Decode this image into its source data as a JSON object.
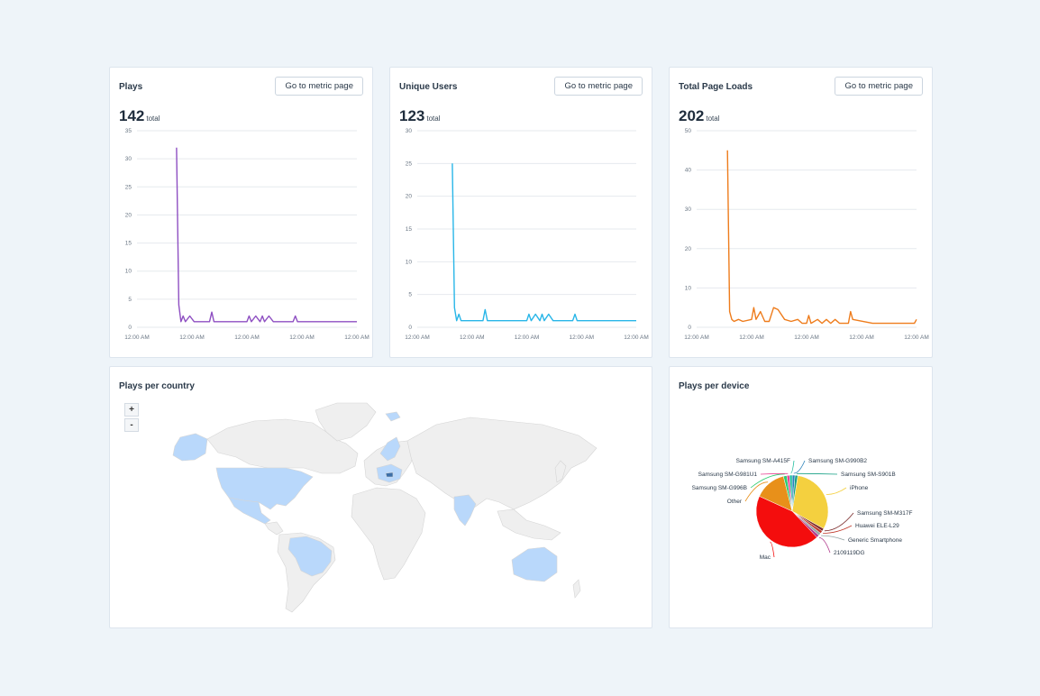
{
  "colors": {
    "plays": "#8e4fc2",
    "unique_users": "#29b6e8",
    "page_loads": "#ee7c1c",
    "map_highlight": "#b9d8fb",
    "map_land": "#efefef"
  },
  "common": {
    "metric_button_label": "Go to metric page",
    "total_suffix": "total"
  },
  "cards": {
    "plays": {
      "title": "Plays",
      "total": "142"
    },
    "unique_users": {
      "title": "Unique Users",
      "total": "123"
    },
    "page_loads": {
      "title": "Total Page Loads",
      "total": "202"
    },
    "country": {
      "title": "Plays per country",
      "zoom_in": "+",
      "zoom_out": "-"
    },
    "device": {
      "title": "Plays per device"
    }
  },
  "chart_data": [
    {
      "type": "line",
      "name": "plays",
      "ylim": [
        0,
        35
      ],
      "yticks": [
        0,
        5,
        10,
        15,
        20,
        25,
        30,
        35
      ],
      "xtick_labels": [
        "12:00 AM",
        "12:00 AM",
        "12:00 AM",
        "12:00 AM",
        "12:00 AM"
      ],
      "x": [
        0,
        0.18,
        0.19,
        0.2,
        0.21,
        0.22,
        0.24,
        0.26,
        0.28,
        0.3,
        0.33,
        0.34,
        0.35,
        0.37,
        0.5,
        0.51,
        0.52,
        0.54,
        0.56,
        0.57,
        0.58,
        0.6,
        0.62,
        0.71,
        0.72,
        0.73,
        0.8,
        1
      ],
      "values": [
        null,
        32,
        4,
        1,
        2,
        1,
        2,
        1,
        1,
        1,
        1,
        2.7,
        1,
        1,
        1,
        2,
        1,
        2,
        1,
        2,
        1,
        2,
        1,
        1,
        2,
        1,
        1,
        1
      ]
    },
    {
      "type": "line",
      "name": "unique_users",
      "ylim": [
        0,
        30
      ],
      "yticks": [
        0,
        5,
        10,
        15,
        20,
        25,
        30
      ],
      "xtick_labels": [
        "12:00 AM",
        "12:00 AM",
        "12:00 AM",
        "12:00 AM",
        "12:00 AM"
      ],
      "x": [
        0,
        0.16,
        0.17,
        0.18,
        0.19,
        0.2,
        0.22,
        0.3,
        0.31,
        0.32,
        0.34,
        0.5,
        0.51,
        0.52,
        0.54,
        0.56,
        0.57,
        0.58,
        0.6,
        0.62,
        0.71,
        0.72,
        0.73,
        0.8,
        1
      ],
      "values": [
        null,
        25,
        3,
        1,
        2,
        1,
        1,
        1,
        2.7,
        1,
        1,
        1,
        2,
        1,
        2,
        1,
        2,
        1,
        2,
        1,
        1,
        2,
        1,
        1,
        1
      ]
    },
    {
      "type": "line",
      "name": "page_loads",
      "ylim": [
        0,
        50
      ],
      "yticks": [
        0,
        10,
        20,
        30,
        40,
        50
      ],
      "xtick_labels": [
        "12:00 AM",
        "12:00 AM",
        "12:00 AM",
        "12:00 AM",
        "12:00 AM"
      ],
      "x": [
        0,
        0.14,
        0.15,
        0.16,
        0.17,
        0.19,
        0.21,
        0.25,
        0.26,
        0.27,
        0.29,
        0.31,
        0.33,
        0.35,
        0.37,
        0.4,
        0.43,
        0.46,
        0.48,
        0.5,
        0.51,
        0.52,
        0.55,
        0.57,
        0.59,
        0.61,
        0.63,
        0.65,
        0.69,
        0.7,
        0.71,
        0.8,
        0.86,
        0.87,
        0.88,
        0.92,
        0.99,
        1
      ],
      "values": [
        null,
        45,
        4,
        2,
        1.5,
        2,
        1.5,
        2,
        5,
        2,
        4,
        1.5,
        1.5,
        5,
        4.5,
        2,
        1.5,
        2,
        1,
        1,
        3,
        1,
        2,
        1,
        2,
        1,
        2,
        1,
        1,
        4,
        2,
        1,
        1,
        1,
        1,
        1,
        1,
        2
      ]
    },
    {
      "type": "pie",
      "name": "plays_per_device",
      "labels": [
        "iPhone",
        "Samsung SM-M317F",
        "Huawei ELE-L29",
        "Generic Smartphone",
        "2109119DG",
        "Mac",
        "Other",
        "Samsung SM-G996B",
        "Samsung SM-G981U1",
        "Samsung SM-A415F",
        "Samsung SM-G990B2",
        "Samsung SM-S901B"
      ],
      "values": [
        30,
        1.2,
        1.2,
        1.2,
        1.2,
        43,
        14,
        1.5,
        1.2,
        1.2,
        1.2,
        1.2
      ],
      "colors": [
        "#f4d03f",
        "#7a2a2a",
        "#c0392b",
        "#95a5a6",
        "#b03a8c",
        "#f40d0d",
        "#e8901a",
        "#2ecc71",
        "#e84393",
        "#1abc9c",
        "#2980b9",
        "#16a085"
      ]
    }
  ]
}
